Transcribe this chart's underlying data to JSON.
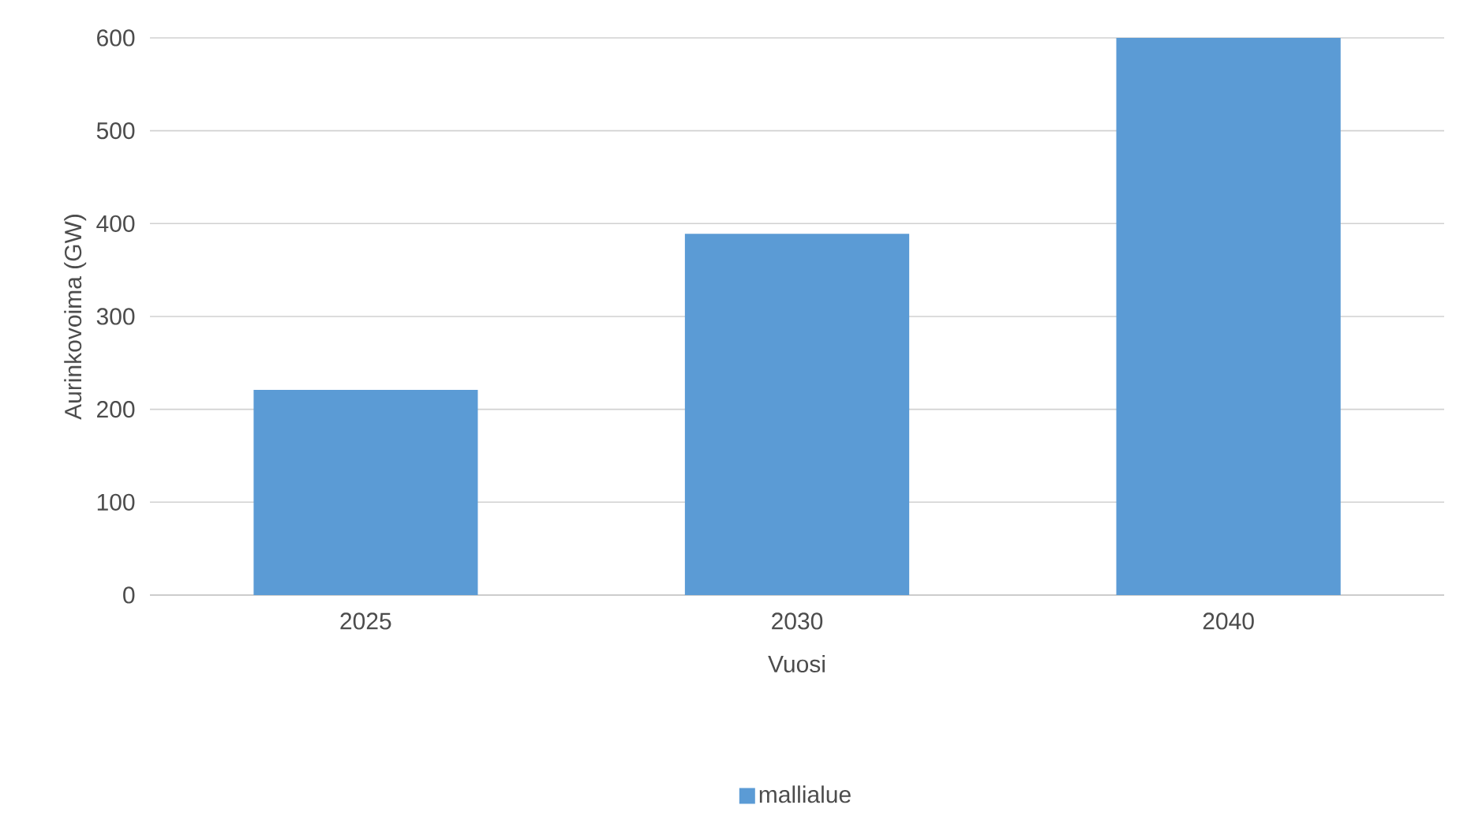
{
  "chart_data": {
    "type": "bar",
    "xlabel": "Vuosi",
    "ylabel": "Aurinkovoima (GW)",
    "categories": [
      "2025",
      "2030",
      "2040"
    ],
    "series": [
      {
        "name": "mallialue",
        "color": "#5b9bd5",
        "values": [
          221,
          389,
          600
        ]
      }
    ],
    "ylim": [
      0,
      600
    ],
    "yticks": [
      0,
      100,
      200,
      300,
      400,
      500,
      600
    ],
    "grid": "y",
    "legend": "bottom"
  }
}
